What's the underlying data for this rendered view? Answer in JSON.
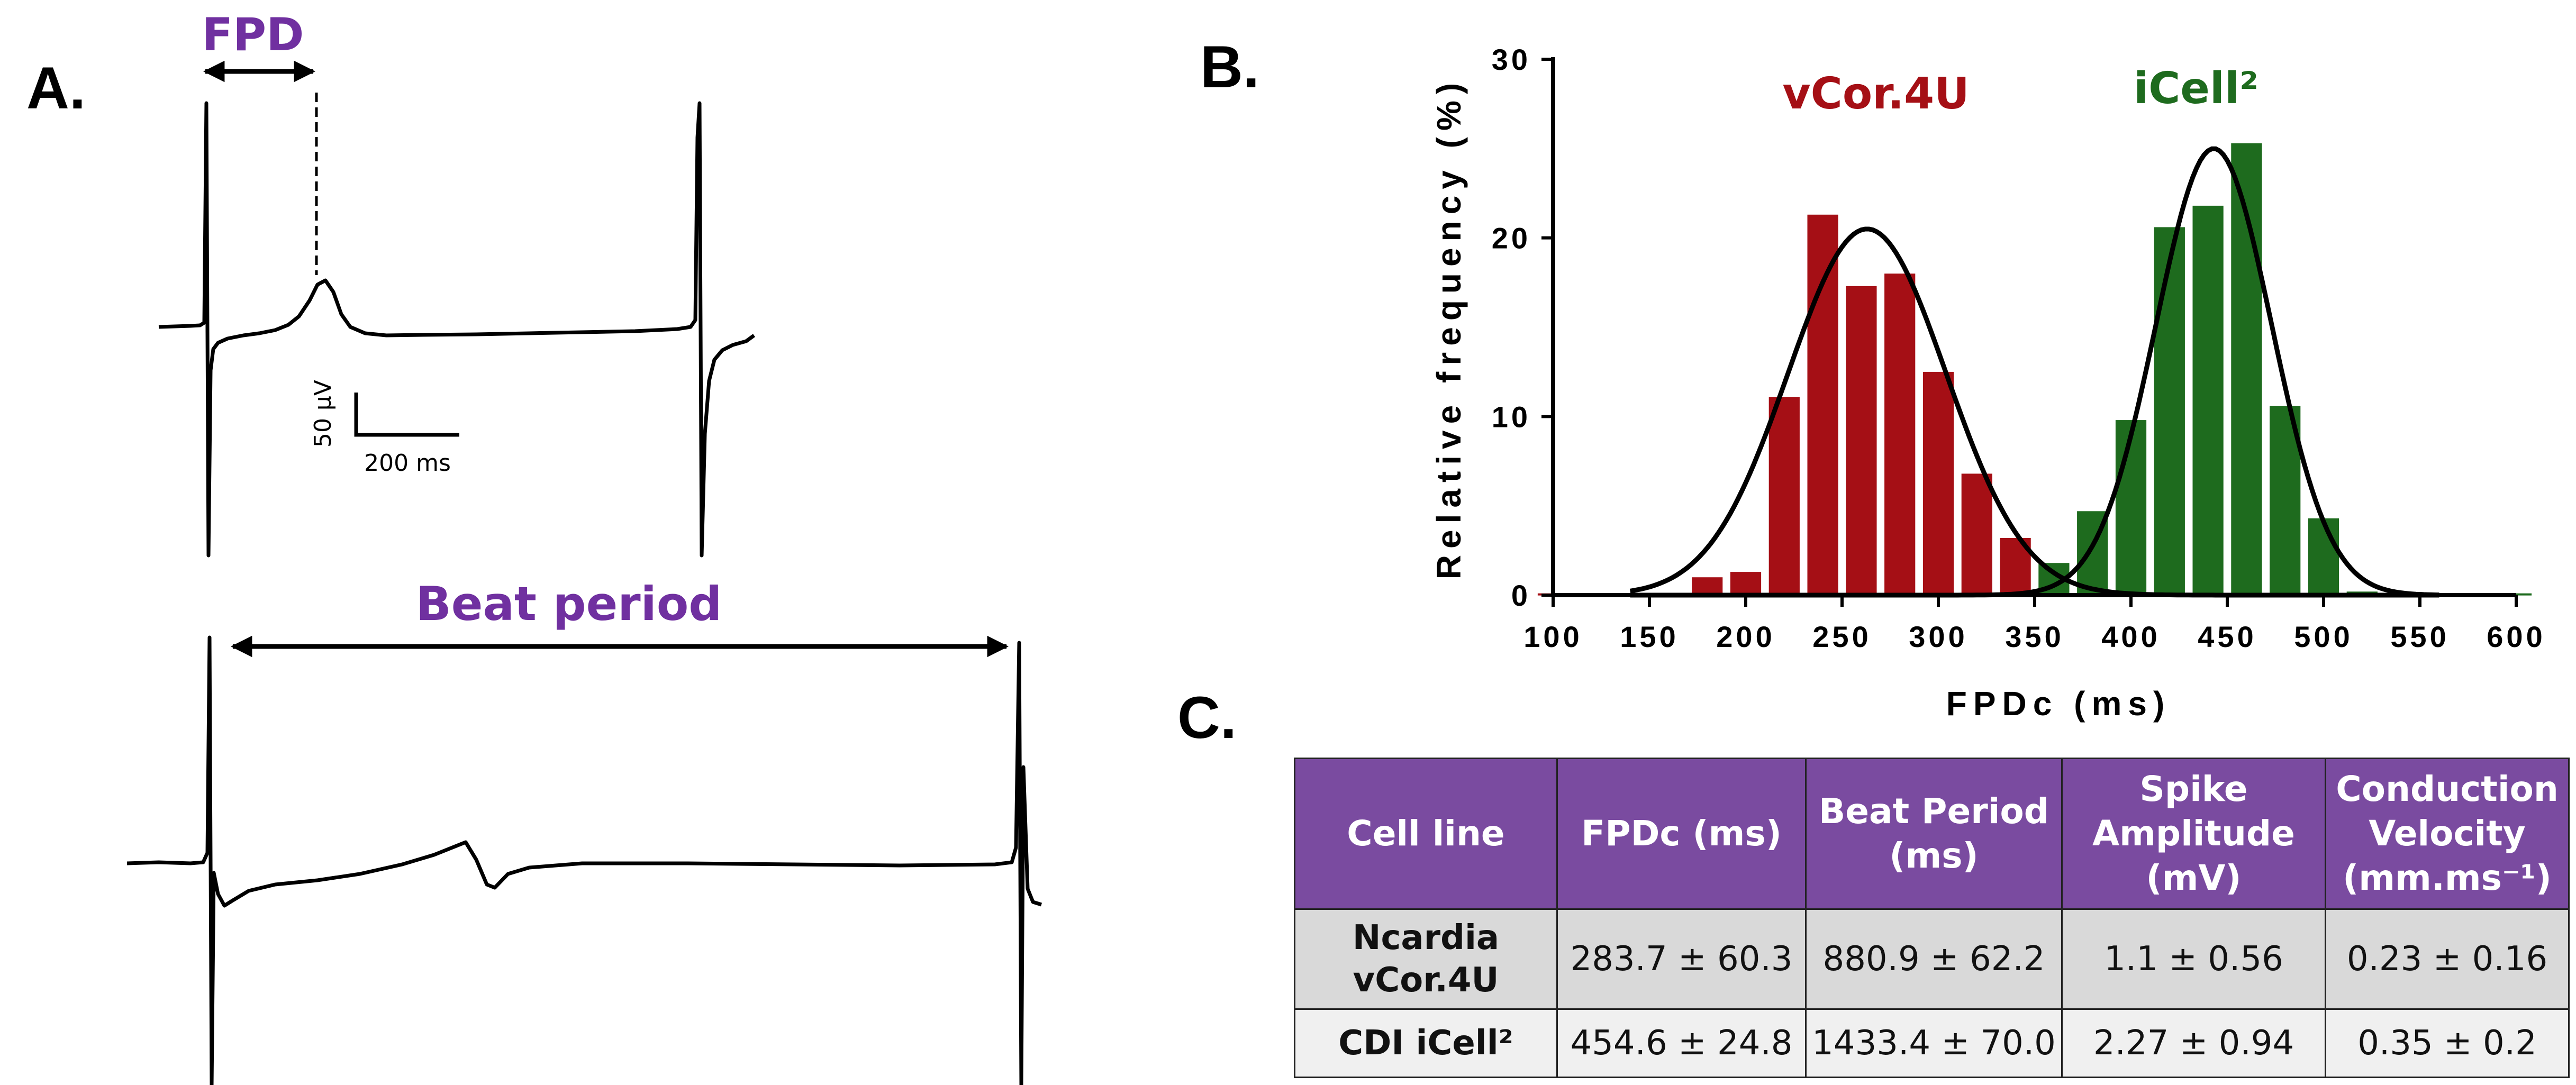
{
  "panels": {
    "a": "A.",
    "b": "B.",
    "c": "C."
  },
  "panel_a": {
    "fpd_label": "FPD",
    "beat_period_label": "Beat period",
    "scale_y_label": "50 µV",
    "scale_x_label": "200 ms",
    "label_color": "#7030a0"
  },
  "chart_data": {
    "type": "bar",
    "xlabel": "FPDc (ms)",
    "ylabel": "Relative frequency (%)",
    "xlim": [
      100,
      600
    ],
    "ylim": [
      0,
      30
    ],
    "xticks": [
      100,
      150,
      200,
      250,
      300,
      350,
      400,
      450,
      500,
      550,
      600
    ],
    "yticks": [
      0,
      10,
      20,
      30
    ],
    "bin_width": 20,
    "series": [
      {
        "name": "vCor.4U",
        "color": "#a50f15",
        "bins": [
          100,
          120,
          140,
          160,
          180,
          200,
          220,
          240,
          260,
          280,
          300,
          320,
          340,
          360
        ],
        "values": [
          0.1,
          0.1,
          0,
          0,
          1.0,
          1.3,
          11.1,
          21.3,
          17.3,
          18.0,
          12.5,
          6.8,
          3.2,
          0
        ],
        "fit": {
          "mean": 263,
          "sd": 41,
          "peak": 20.5
        }
      },
      {
        "name": "iCell²",
        "color": "#1e6b1e",
        "bins": [
          360,
          380,
          400,
          420,
          440,
          460,
          480,
          500,
          520,
          540,
          560,
          580,
          600
        ],
        "values": [
          1.8,
          4.7,
          9.8,
          20.6,
          21.8,
          25.3,
          10.6,
          4.3,
          0.2,
          0.1,
          0.1,
          0.1,
          0.1
        ],
        "fit": {
          "mean": 443,
          "sd": 30,
          "peak": 25
        }
      }
    ]
  },
  "table": {
    "headers": [
      "Cell line",
      "FPDc (ms)",
      "Beat Period (ms)",
      "Spike Amplitude (mV)",
      "Conduction Velocity (mm.ms⁻¹)"
    ],
    "header_color": "#7a4ba0",
    "rows": [
      [
        "Ncardia vCor.4U",
        "283.7 ± 60.3",
        "880.9 ± 62.2",
        "1.1 ± 0.56",
        "0.23 ± 0.16"
      ],
      [
        "CDI iCell²",
        "454.6 ± 24.8",
        "1433.4 ± 70.0",
        "2.27 ± 0.94",
        "0.35 ± 0.2"
      ]
    ]
  }
}
